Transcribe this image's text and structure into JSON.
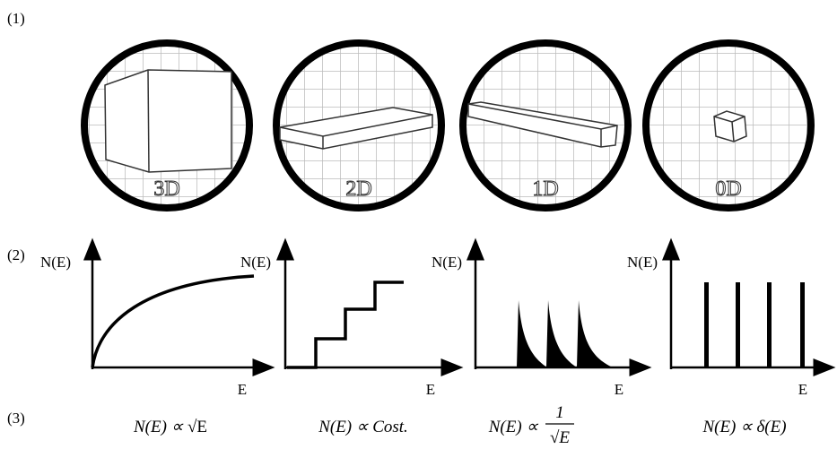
{
  "panel_labels": [
    "(1)",
    "(2)",
    "(3)"
  ],
  "dimensions": [
    "3D",
    "2D",
    "1D",
    "0D"
  ],
  "axes": [
    {
      "y_label": "N(E)",
      "x_label": "E"
    },
    {
      "y_label": "N(E)",
      "x_label": "E"
    },
    {
      "y_label": "N(E)",
      "x_label": "E"
    },
    {
      "y_label": "N(E)",
      "x_label": "E"
    }
  ],
  "formulas": [
    {
      "lhs": "N(E) ∝",
      "rhs": "√E"
    },
    {
      "lhs": "N(E) ∝",
      "rhs": "Cost."
    },
    {
      "lhs": "N(E) ∝",
      "numerator": "1",
      "denominator": "√E"
    },
    {
      "lhs": "N(E) ∝",
      "rhs": "δ(E)"
    }
  ]
}
